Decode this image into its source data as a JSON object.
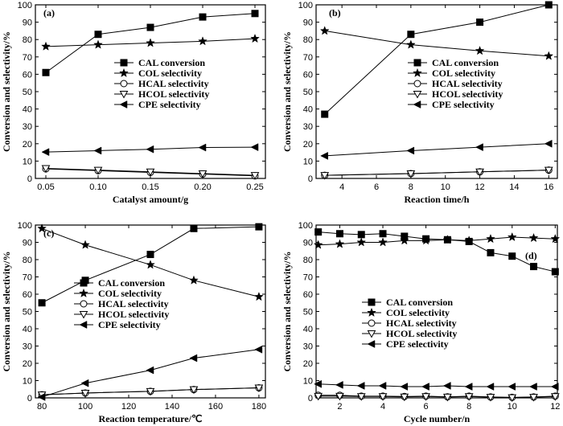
{
  "chart_data": [
    {
      "id": "a",
      "type": "line",
      "panel_label": "(a)",
      "xlabel": "Catalyst amount/g",
      "ylabel": "Conversion and selectivity/%",
      "xlim": [
        0.04,
        0.26
      ],
      "ylim": [
        0,
        100
      ],
      "xticks": [
        0.05,
        0.1,
        0.15,
        0.2,
        0.25
      ],
      "xtick_labels": [
        "0.05",
        "0.10",
        "0.15",
        "0.20",
        "0.25"
      ],
      "yticks": [
        0,
        10,
        20,
        30,
        40,
        50,
        60,
        70,
        80,
        90,
        100
      ],
      "ytick_labels": [
        "0",
        "10",
        "20",
        "30",
        "40",
        "50",
        "60",
        "70",
        "80",
        "90",
        "100"
      ],
      "legend_position": "middle-left",
      "series": [
        {
          "name": "CAL conversion",
          "marker": "square",
          "x": [
            0.05,
            0.1,
            0.15,
            0.2,
            0.25
          ],
          "y": [
            61,
            83,
            87,
            93,
            95
          ]
        },
        {
          "name": "COL selectivity",
          "marker": "star",
          "x": [
            0.05,
            0.1,
            0.15,
            0.2,
            0.25
          ],
          "y": [
            76,
            77,
            78,
            79,
            80.5
          ]
        },
        {
          "name": "HCAL selectivity",
          "marker": "circle-open",
          "x": [
            0.05,
            0.1,
            0.15,
            0.2,
            0.25
          ],
          "y": [
            5.5,
            4.5,
            3.5,
            2.5,
            1.5
          ]
        },
        {
          "name": "HCOL selectivity",
          "marker": "triangle-down-open",
          "x": [
            0.05,
            0.1,
            0.15,
            0.2,
            0.25
          ],
          "y": [
            5.8,
            4.8,
            3.8,
            2.8,
            1.8
          ]
        },
        {
          "name": "CPE selectivity",
          "marker": "triangle-left",
          "x": [
            0.05,
            0.1,
            0.15,
            0.2,
            0.25
          ],
          "y": [
            15.2,
            16,
            16.8,
            17.8,
            18
          ]
        }
      ]
    },
    {
      "id": "b",
      "type": "line",
      "panel_label": "(b)",
      "xlabel": "Reaction time/h",
      "ylabel": "Conversion and selectivity/%",
      "xlim": [
        2.5,
        16.5
      ],
      "ylim": [
        0,
        100
      ],
      "xticks": [
        4,
        6,
        8,
        10,
        12,
        14,
        16
      ],
      "xtick_labels": [
        "4",
        "6",
        "8",
        "10",
        "12",
        "14",
        "16"
      ],
      "yticks": [
        0,
        10,
        20,
        30,
        40,
        50,
        60,
        70,
        80,
        90,
        100
      ],
      "ytick_labels": [
        "0",
        "10",
        "20",
        "30",
        "40",
        "50",
        "60",
        "70",
        "80",
        "90",
        "100"
      ],
      "legend_position": "middle-center",
      "series": [
        {
          "name": "CAL conversion",
          "marker": "square",
          "x": [
            3,
            8,
            12,
            16
          ],
          "y": [
            37,
            83,
            90,
            100
          ]
        },
        {
          "name": "COL selectivity",
          "marker": "star",
          "x": [
            3,
            8,
            12,
            16
          ],
          "y": [
            85,
            77,
            73.5,
            70.5
          ]
        },
        {
          "name": "HCAL selectivity",
          "marker": "circle-open",
          "x": [
            3,
            8,
            12,
            16
          ],
          "y": [
            1.8,
            2.8,
            3.8,
            4.8
          ]
        },
        {
          "name": "HCOL selectivity",
          "marker": "triangle-down-open",
          "x": [
            3,
            8,
            12,
            16
          ],
          "y": [
            1.8,
            2.8,
            3.8,
            4.8
          ]
        },
        {
          "name": "CPE selectivity",
          "marker": "triangle-left",
          "x": [
            3,
            8,
            12,
            16
          ],
          "y": [
            13,
            16,
            18,
            20
          ]
        }
      ]
    },
    {
      "id": "c",
      "type": "line",
      "panel_label": "(c)",
      "xlabel": "Reaction temperature/℃",
      "ylabel": "Conversion and selectivity/%",
      "xlim": [
        77,
        183
      ],
      "ylim": [
        0,
        100
      ],
      "xticks": [
        80,
        100,
        120,
        140,
        160,
        180
      ],
      "xtick_labels": [
        "80",
        "100",
        "120",
        "140",
        "160",
        "180"
      ],
      "yticks": [
        0,
        10,
        20,
        30,
        40,
        50,
        60,
        70,
        80,
        90,
        100
      ],
      "ytick_labels": [
        "0",
        "10",
        "20",
        "30",
        "40",
        "50",
        "60",
        "70",
        "80",
        "90",
        "100"
      ],
      "legend_position": "middle-right",
      "series": [
        {
          "name": "CAL conversion",
          "marker": "square",
          "x": [
            80,
            100,
            130,
            150,
            180
          ],
          "y": [
            55,
            68,
            83,
            98,
            99
          ]
        },
        {
          "name": "COL selectivity",
          "marker": "star",
          "x": [
            80,
            100,
            130,
            150,
            180
          ],
          "y": [
            98,
            88.5,
            77,
            68,
            58.5
          ]
        },
        {
          "name": "HCAL selectivity",
          "marker": "circle-open",
          "x": [
            80,
            100,
            130,
            150,
            180
          ],
          "y": [
            1.8,
            2.8,
            3.8,
            4.8,
            5.8
          ]
        },
        {
          "name": "HCOL selectivity",
          "marker": "triangle-down-open",
          "x": [
            80,
            100,
            130,
            150,
            180
          ],
          "y": [
            1.8,
            2.8,
            3.8,
            4.8,
            5.8
          ]
        },
        {
          "name": "CPE selectivity",
          "marker": "triangle-left",
          "x": [
            80,
            100,
            130,
            150,
            180
          ],
          "y": [
            0.5,
            8.5,
            16,
            23,
            28
          ]
        }
      ]
    },
    {
      "id": "d",
      "type": "line",
      "panel_label": "(d)",
      "xlabel": "Cycle number/n",
      "ylabel": "Conversion and selectivity/%",
      "xlim": [
        0.9,
        12.1
      ],
      "ylim": [
        0,
        100
      ],
      "xticks": [
        2,
        4,
        6,
        8,
        10,
        12
      ],
      "xtick_labels": [
        "2",
        "4",
        "6",
        "8",
        "10",
        "12"
      ],
      "yticks": [
        0,
        10,
        20,
        30,
        40,
        50,
        60,
        70,
        80,
        90,
        100
      ],
      "ytick_labels": [
        "0",
        "10",
        "20",
        "30",
        "40",
        "50",
        "60",
        "70",
        "80",
        "90",
        "100"
      ],
      "legend_position": "middle-center",
      "series": [
        {
          "name": "CAL conversion",
          "marker": "square",
          "x": [
            1,
            2,
            3,
            4,
            5,
            6,
            7,
            8,
            9,
            10,
            11,
            12
          ],
          "y": [
            96,
            95,
            94.5,
            95,
            93.5,
            92,
            91.5,
            90.5,
            84,
            82,
            76,
            73
          ]
        },
        {
          "name": "COL selectivity",
          "marker": "star",
          "x": [
            1,
            2,
            3,
            4,
            5,
            6,
            7,
            8,
            9,
            10,
            11,
            12
          ],
          "y": [
            88.5,
            89,
            90,
            90,
            91,
            91,
            91.5,
            91,
            92,
            93,
            92.5,
            92
          ]
        },
        {
          "name": "HCAL selectivity",
          "marker": "circle-open",
          "x": [
            1,
            2,
            3,
            4,
            5,
            6,
            7,
            8,
            9,
            10,
            11,
            12
          ],
          "y": [
            1.5,
            1.5,
            1,
            1,
            0.8,
            1,
            0.6,
            1,
            0.5,
            0.3,
            0.5,
            1
          ]
        },
        {
          "name": "HCOL selectivity",
          "marker": "triangle-down-open",
          "x": [
            1,
            2,
            3,
            4,
            5,
            6,
            7,
            8,
            9,
            10,
            11,
            12
          ],
          "y": [
            1,
            1,
            0.8,
            0.8,
            0.6,
            0.8,
            0.5,
            0.8,
            0.4,
            0.2,
            0.4,
            0.8
          ]
        },
        {
          "name": "CPE selectivity",
          "marker": "triangle-left",
          "x": [
            1,
            2,
            3,
            4,
            5,
            6,
            7,
            8,
            9,
            10,
            11,
            12
          ],
          "y": [
            8,
            7.5,
            7,
            7,
            6.5,
            6.5,
            7,
            6.5,
            6.5,
            6.5,
            6.5,
            6.5
          ]
        }
      ]
    }
  ]
}
